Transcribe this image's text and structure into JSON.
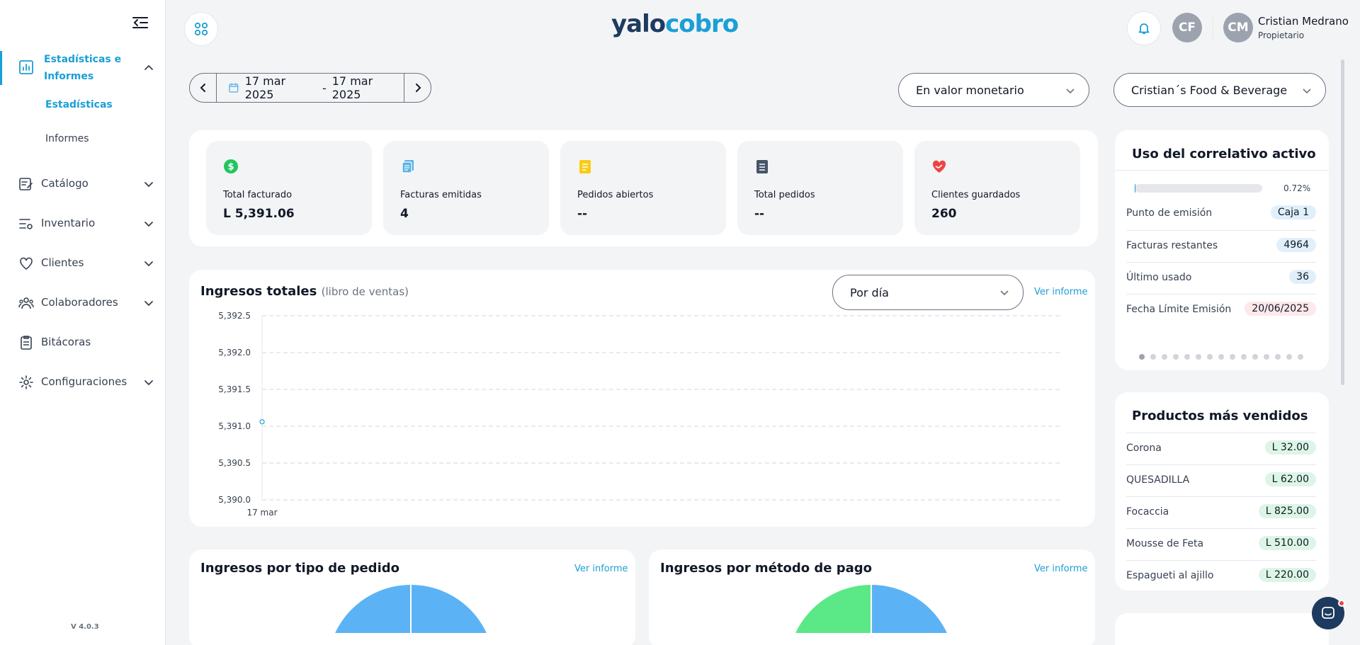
{
  "app": {
    "logo_part1": "yalo",
    "logo_part2": "cobro",
    "version": "V 4.0.3"
  },
  "user": {
    "initials_org": "CF",
    "initials": "CM",
    "name": "Cristian Medrano",
    "role": "Propietario"
  },
  "sidebar": {
    "active": {
      "label": "Estadísticas e Informes",
      "subitems": [
        "Estadísticas",
        "Informes"
      ]
    },
    "items": [
      {
        "label": "Catálogo"
      },
      {
        "label": "Inventario"
      },
      {
        "label": "Clientes"
      },
      {
        "label": "Colaboradores"
      },
      {
        "label": "Bitácoras"
      },
      {
        "label": "Configuraciones"
      }
    ]
  },
  "filters": {
    "date_start": "17 mar 2025",
    "date_sep": "-",
    "date_end": "17 mar 2025",
    "value_mode": "En valor monetario",
    "business": "Cristian´s Food & Beverage"
  },
  "kpis": [
    {
      "label": "Total facturado",
      "value": "L 5,391.06",
      "icon": "dollar-icon",
      "color": "#22c55e"
    },
    {
      "label": "Facturas emitidas",
      "value": "4",
      "icon": "invoices-icon",
      "color": "#5bb3e6"
    },
    {
      "label": "Pedidos abiertos",
      "value": "--",
      "icon": "note-icon",
      "color": "#facc15"
    },
    {
      "label": "Total pedidos",
      "value": "--",
      "icon": "list-icon",
      "color": "#475569"
    },
    {
      "label": "Clientes guardados",
      "value": "260",
      "icon": "heart-hand-icon",
      "color": "#ef4444"
    }
  ],
  "revenue": {
    "title": "Ingresos totales",
    "subtitle": "(libro de ventas)",
    "period": "Por día",
    "link": "Ver informe"
  },
  "chart_data": {
    "type": "line",
    "x": [
      "17 mar"
    ],
    "series": [
      {
        "values": [
          5391.06
        ]
      }
    ],
    "ylim": [
      5390.0,
      5392.5
    ],
    "yticks": [
      "5,392.5",
      "5,392.0",
      "5,391.5",
      "5,391.0",
      "5,390.5",
      "5,390.0"
    ],
    "grid": true,
    "color": "#1a9fd6"
  },
  "order_type": {
    "title": "Ingresos por tipo de pedido",
    "link": "Ver informe"
  },
  "payment_method": {
    "title": "Ingresos por método de pago",
    "link": "Ver informe"
  },
  "correlative": {
    "title": "Uso del correlativo activo",
    "percent": "0.72%",
    "rows": [
      {
        "label": "Punto de emisión",
        "value": "Caja 1"
      },
      {
        "label": "Facturas restantes",
        "value": "4964"
      },
      {
        "label": "Último usado",
        "value": "36"
      },
      {
        "label": "Fecha Límite Emisión",
        "value": "20/06/2025"
      }
    ]
  },
  "top_products": {
    "title": "Productos más vendidos",
    "rows": [
      {
        "label": "Corona",
        "value": "L 32.00"
      },
      {
        "label": "QUESADILLA",
        "value": "L 62.00"
      },
      {
        "label": "Focaccia",
        "value": "L 825.00"
      },
      {
        "label": "Mousse de Feta",
        "value": "L 510.00"
      },
      {
        "label": "Espagueti al ajillo",
        "value": "L 220.00"
      }
    ]
  }
}
